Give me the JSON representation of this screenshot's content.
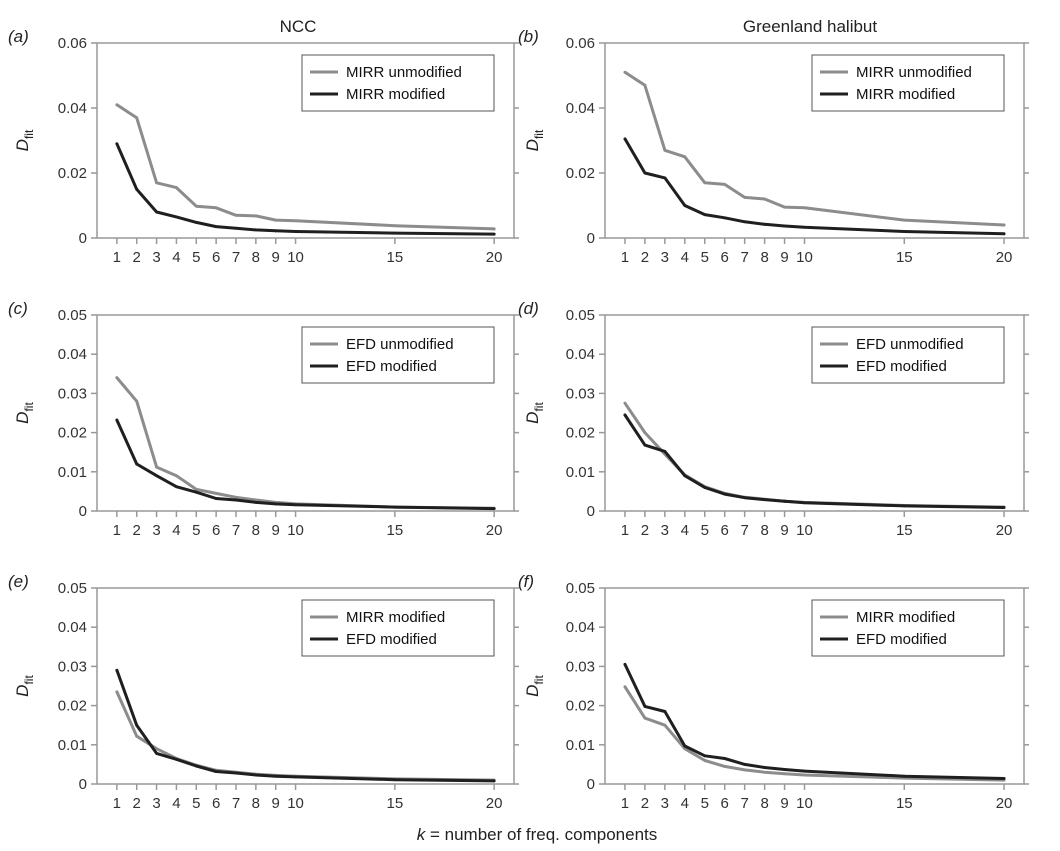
{
  "figure": {
    "column_titles": [
      "NCC",
      "Greenland halibut"
    ],
    "xlabel": "k = number of freq. components",
    "xlabel_var": "k",
    "xlabel_rest": " = number of freq. components",
    "ylabel_main": "D",
    "ylabel_sub": "fit",
    "colors": {
      "light": "#8c8c8c",
      "dark": "#1f1f1f",
      "axis": "#999999"
    }
  },
  "chart_data": [
    {
      "id": "a",
      "label": "(a)",
      "type": "line",
      "x": [
        1,
        2,
        3,
        4,
        5,
        6,
        7,
        8,
        9,
        10,
        15,
        20
      ],
      "xticks": [
        1,
        2,
        3,
        4,
        5,
        6,
        7,
        8,
        9,
        10,
        15,
        20
      ],
      "ylim": [
        0,
        0.06
      ],
      "yticks": [
        0,
        0.02,
        0.04,
        0.06
      ],
      "ytick_labels": [
        "0",
        "0.02",
        "0.04",
        "0.06"
      ],
      "series": [
        {
          "name": "MIRR unmodified",
          "color": "#8c8c8c",
          "values": [
            0.041,
            0.037,
            0.017,
            0.0155,
            0.0098,
            0.0093,
            0.007,
            0.0068,
            0.0055,
            0.0053,
            0.0038,
            0.0028
          ]
        },
        {
          "name": "MIRR modified",
          "color": "#1f1f1f",
          "values": [
            0.029,
            0.015,
            0.008,
            0.0065,
            0.0048,
            0.0035,
            0.003,
            0.0025,
            0.0022,
            0.002,
            0.0015,
            0.0012
          ]
        }
      ]
    },
    {
      "id": "b",
      "label": "(b)",
      "type": "line",
      "x": [
        1,
        2,
        3,
        4,
        5,
        6,
        7,
        8,
        9,
        10,
        15,
        20
      ],
      "xticks": [
        1,
        2,
        3,
        4,
        5,
        6,
        7,
        8,
        9,
        10,
        15,
        20
      ],
      "ylim": [
        0,
        0.06
      ],
      "yticks": [
        0,
        0.02,
        0.04,
        0.06
      ],
      "ytick_labels": [
        "0",
        "0.02",
        "0.04",
        "0.06"
      ],
      "series": [
        {
          "name": "MIRR unmodified",
          "color": "#8c8c8c",
          "values": [
            0.051,
            0.047,
            0.027,
            0.025,
            0.017,
            0.0165,
            0.0125,
            0.012,
            0.0095,
            0.0093,
            0.0055,
            0.004
          ]
        },
        {
          "name": "MIRR modified",
          "color": "#1f1f1f",
          "values": [
            0.0305,
            0.02,
            0.0185,
            0.01,
            0.0072,
            0.0062,
            0.005,
            0.0042,
            0.0037,
            0.0033,
            0.002,
            0.0013
          ]
        }
      ]
    },
    {
      "id": "c",
      "label": "(c)",
      "type": "line",
      "x": [
        1,
        2,
        3,
        4,
        5,
        6,
        7,
        8,
        9,
        10,
        15,
        20
      ],
      "xticks": [
        1,
        2,
        3,
        4,
        5,
        6,
        7,
        8,
        9,
        10,
        15,
        20
      ],
      "ylim": [
        0,
        0.05
      ],
      "yticks": [
        0,
        0.01,
        0.02,
        0.03,
        0.04,
        0.05
      ],
      "ytick_labels": [
        "0",
        "0.01",
        "0.02",
        "0.03",
        "0.04",
        "0.05"
      ],
      "series": [
        {
          "name": "EFD unmodified",
          "color": "#8c8c8c",
          "values": [
            0.034,
            0.028,
            0.0112,
            0.009,
            0.0055,
            0.0045,
            0.0035,
            0.0028,
            0.0022,
            0.0018,
            0.001,
            0.0007
          ]
        },
        {
          "name": "EFD modified",
          "color": "#1f1f1f",
          "values": [
            0.0232,
            0.012,
            0.009,
            0.0062,
            0.0048,
            0.0032,
            0.0028,
            0.0022,
            0.0018,
            0.0016,
            0.001,
            0.0006
          ]
        }
      ]
    },
    {
      "id": "d",
      "label": "(d)",
      "type": "line",
      "x": [
        1,
        2,
        3,
        4,
        5,
        6,
        7,
        8,
        9,
        10,
        15,
        20
      ],
      "xticks": [
        1,
        2,
        3,
        4,
        5,
        6,
        7,
        8,
        9,
        10,
        15,
        20
      ],
      "ylim": [
        0,
        0.05
      ],
      "yticks": [
        0,
        0.01,
        0.02,
        0.03,
        0.04,
        0.05
      ],
      "ytick_labels": [
        "0",
        "0.01",
        "0.02",
        "0.03",
        "0.04",
        "0.05"
      ],
      "series": [
        {
          "name": "EFD unmodified",
          "color": "#8c8c8c",
          "values": [
            0.0275,
            0.02,
            0.0145,
            0.0092,
            0.0062,
            0.0045,
            0.0035,
            0.003,
            0.0025,
            0.0022,
            0.0014,
            0.001
          ]
        },
        {
          "name": "EFD modified",
          "color": "#1f1f1f",
          "values": [
            0.0245,
            0.0168,
            0.0152,
            0.009,
            0.006,
            0.0043,
            0.0034,
            0.0029,
            0.0025,
            0.0021,
            0.0013,
            0.0009
          ]
        }
      ]
    },
    {
      "id": "e",
      "label": "(e)",
      "type": "line",
      "x": [
        1,
        2,
        3,
        4,
        5,
        6,
        7,
        8,
        9,
        10,
        15,
        20
      ],
      "xticks": [
        1,
        2,
        3,
        4,
        5,
        6,
        7,
        8,
        9,
        10,
        15,
        20
      ],
      "ylim": [
        0,
        0.05
      ],
      "yticks": [
        0,
        0.01,
        0.02,
        0.03,
        0.04,
        0.05
      ],
      "ytick_labels": [
        "0",
        "0.01",
        "0.02",
        "0.03",
        "0.04",
        "0.05"
      ],
      "series": [
        {
          "name": "MIRR modified",
          "color": "#8c8c8c",
          "values": [
            0.0235,
            0.0122,
            0.009,
            0.0065,
            0.0048,
            0.0035,
            0.003,
            0.0025,
            0.0022,
            0.002,
            0.0013,
            0.001
          ]
        },
        {
          "name": "EFD modified",
          "color": "#1f1f1f",
          "values": [
            0.029,
            0.015,
            0.0078,
            0.0063,
            0.0046,
            0.0032,
            0.0028,
            0.0023,
            0.002,
            0.0018,
            0.0011,
            0.0008
          ]
        }
      ]
    },
    {
      "id": "f",
      "label": "(f)",
      "type": "line",
      "x": [
        1,
        2,
        3,
        4,
        5,
        6,
        7,
        8,
        9,
        10,
        15,
        20
      ],
      "xticks": [
        1,
        2,
        3,
        4,
        5,
        6,
        7,
        8,
        9,
        10,
        15,
        20
      ],
      "ylim": [
        0,
        0.05
      ],
      "yticks": [
        0,
        0.01,
        0.02,
        0.03,
        0.04,
        0.05
      ],
      "ytick_labels": [
        "0",
        "0.01",
        "0.02",
        "0.03",
        "0.04",
        "0.05"
      ],
      "series": [
        {
          "name": "MIRR modified",
          "color": "#8c8c8c",
          "values": [
            0.0248,
            0.0168,
            0.015,
            0.009,
            0.006,
            0.0045,
            0.0036,
            0.003,
            0.0026,
            0.0023,
            0.0015,
            0.001
          ]
        },
        {
          "name": "EFD modified",
          "color": "#1f1f1f",
          "values": [
            0.0305,
            0.0198,
            0.0185,
            0.0097,
            0.0072,
            0.0065,
            0.005,
            0.0042,
            0.0037,
            0.0033,
            0.002,
            0.0014
          ]
        }
      ]
    }
  ]
}
